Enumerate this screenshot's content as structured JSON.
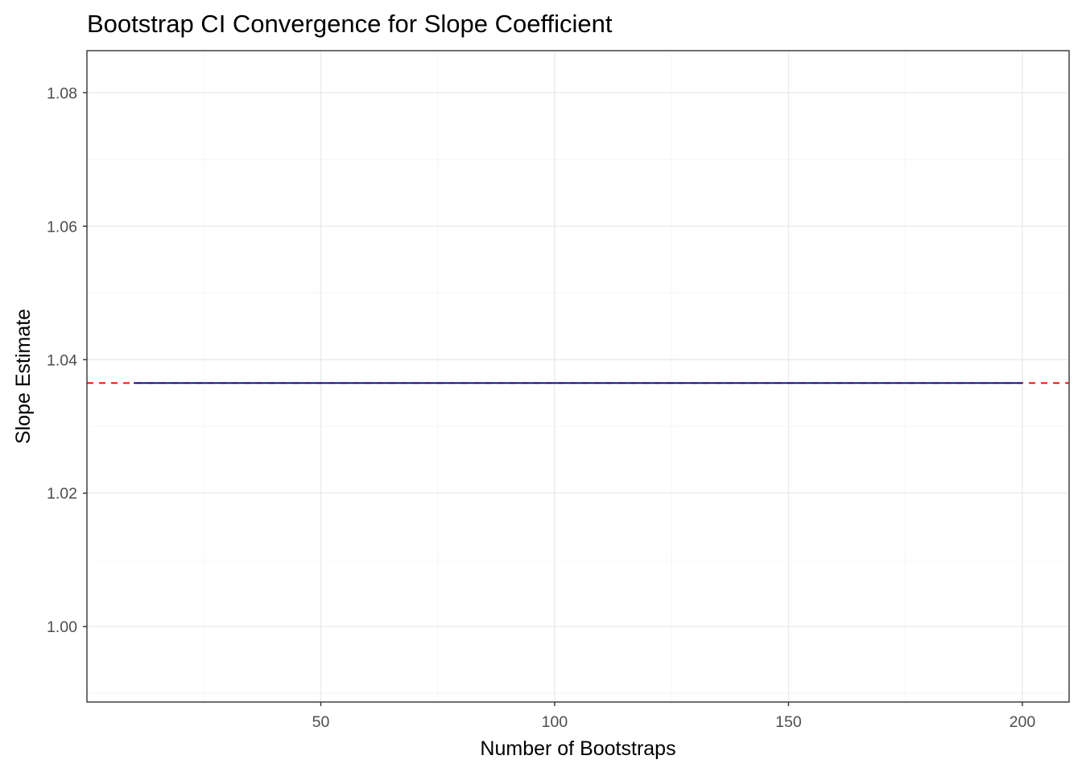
{
  "chart_data": {
    "type": "line",
    "title": "Bootstrap CI Convergence for Slope Coefficient",
    "xlabel": "Number of Bootstraps",
    "ylabel": "Slope Estimate",
    "xlim": [
      0,
      210
    ],
    "ylim": [
      0.9887,
      1.0863
    ],
    "x_ticks": [
      50,
      100,
      150,
      200
    ],
    "x_tick_labels": [
      "50",
      "100",
      "150",
      "200"
    ],
    "y_ticks": [
      1.0,
      1.02,
      1.04,
      1.06,
      1.08
    ],
    "y_tick_labels": [
      "1.00",
      "1.02",
      "1.04",
      "1.06",
      "1.08"
    ],
    "grid": true,
    "legend": "none",
    "series": [
      {
        "style": "solid",
        "color": "#00008b",
        "x": [
          10,
          200
        ],
        "y": [
          1.0365,
          1.0365
        ]
      }
    ],
    "reference_lines": [
      {
        "orientation": "horizontal",
        "style": "dashed",
        "color": "#ff0000",
        "y": 1.0365
      }
    ]
  }
}
